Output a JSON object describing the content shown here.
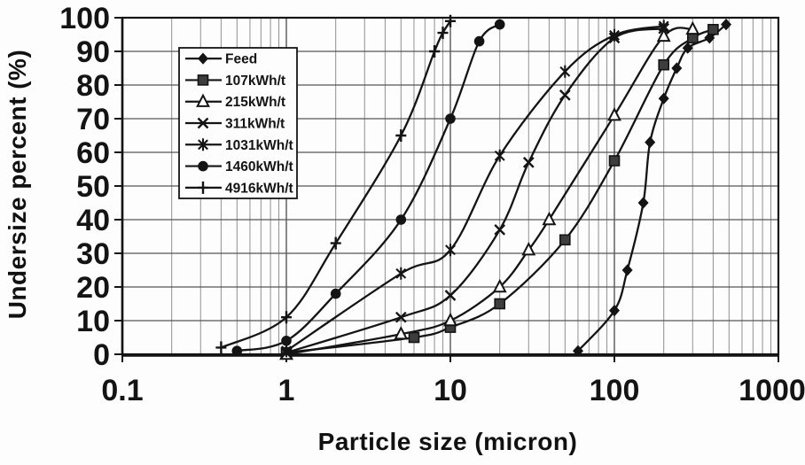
{
  "figure": {
    "ink_color": "#141414",
    "background_color": "#fdfdfd",
    "grid_minor_color": "#909090",
    "grid_major_color": "#555555"
  },
  "chart_data": {
    "type": "line",
    "title": "",
    "xlabel": "Particle size (micron)",
    "ylabel": "Undersize percent (%)",
    "x_scale": "log",
    "xlim": [
      0.1,
      1000
    ],
    "ylim": [
      0,
      100
    ],
    "x_tick_labels": [
      "0.1",
      "1",
      "10",
      "100",
      "1000"
    ],
    "x_tick_values": [
      0.1,
      1,
      10,
      100,
      1000
    ],
    "y_tick_values": [
      0,
      10,
      20,
      30,
      40,
      50,
      60,
      70,
      80,
      90,
      100
    ],
    "grid": {
      "horizontal_step": 10,
      "vertical": "log minor gridlines on"
    },
    "legend": {
      "position": "upper-left-inside",
      "border": true
    },
    "series": [
      {
        "name": "Feed",
        "marker": "diamond-filled",
        "points": [
          [
            60,
            1
          ],
          [
            100,
            13
          ],
          [
            120,
            25
          ],
          [
            150,
            45
          ],
          [
            165,
            63
          ],
          [
            200,
            76
          ],
          [
            240,
            85
          ],
          [
            280,
            91
          ],
          [
            380,
            94
          ],
          [
            480,
            98
          ]
        ]
      },
      {
        "name": "107kWh/t",
        "marker": "square-filled",
        "points": [
          [
            1,
            0.5
          ],
          [
            6,
            5
          ],
          [
            10,
            8
          ],
          [
            20,
            15
          ],
          [
            50,
            34
          ],
          [
            100,
            57.5
          ],
          [
            200,
            86
          ],
          [
            300,
            94
          ],
          [
            400,
            96.5
          ]
        ]
      },
      {
        "name": "215kWh/t",
        "marker": "triangle-open",
        "points": [
          [
            1,
            0
          ],
          [
            5,
            6
          ],
          [
            10,
            10
          ],
          [
            20,
            20
          ],
          [
            30,
            31
          ],
          [
            40,
            40
          ],
          [
            100,
            71
          ],
          [
            200,
            94.5
          ],
          [
            300,
            96.6
          ]
        ]
      },
      {
        "name": "311kWh/t",
        "marker": "x",
        "points": [
          [
            1,
            0.5
          ],
          [
            5,
            11
          ],
          [
            10,
            17.5
          ],
          [
            20,
            37
          ],
          [
            30,
            57
          ],
          [
            50,
            77
          ],
          [
            100,
            94
          ],
          [
            200,
            96.8
          ]
        ]
      },
      {
        "name": "1031kWh/t",
        "marker": "asterisk",
        "points": [
          [
            1,
            1
          ],
          [
            5,
            24
          ],
          [
            10,
            31
          ],
          [
            20,
            59
          ],
          [
            50,
            84
          ],
          [
            100,
            94.8
          ],
          [
            200,
            97.5
          ]
        ]
      },
      {
        "name": "1460kWh/t",
        "marker": "circle-filled",
        "points": [
          [
            0.5,
            1
          ],
          [
            1,
            4
          ],
          [
            2,
            18
          ],
          [
            5,
            40
          ],
          [
            10,
            70
          ],
          [
            15,
            93
          ],
          [
            20,
            98
          ]
        ]
      },
      {
        "name": "4916kWh/t",
        "marker": "plus",
        "points": [
          [
            0.4,
            2
          ],
          [
            1,
            11
          ],
          [
            2,
            33
          ],
          [
            5,
            65
          ],
          [
            8,
            90
          ],
          [
            9,
            95.5
          ],
          [
            10,
            99
          ]
        ]
      }
    ]
  }
}
